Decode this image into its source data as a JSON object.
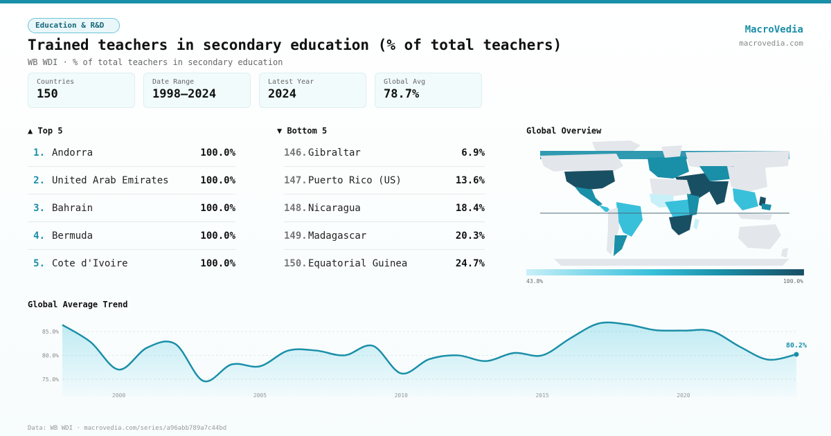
{
  "header": {
    "tag": "Education & R&D",
    "title": "Trained teachers in secondary education (% of total teachers)",
    "subtitle": "WB WDI · % of total teachers in secondary education",
    "brand": "MacroVedia",
    "brand_url": "macrovedia.com"
  },
  "stats": [
    {
      "label": "Countries",
      "value": "150"
    },
    {
      "label": "Date Range",
      "value": "1998–2024"
    },
    {
      "label": "Latest Year",
      "value": "2024"
    },
    {
      "label": "Global Avg",
      "value": "78.7%"
    }
  ],
  "top5": {
    "heading": "▲ Top 5",
    "items": [
      {
        "rank": "1.",
        "name": "Andorra",
        "value": "100.0%"
      },
      {
        "rank": "2.",
        "name": "United Arab Emirates",
        "value": "100.0%"
      },
      {
        "rank": "3.",
        "name": "Bahrain",
        "value": "100.0%"
      },
      {
        "rank": "4.",
        "name": "Bermuda",
        "value": "100.0%"
      },
      {
        "rank": "5.",
        "name": "Cote d'Ivoire",
        "value": "100.0%"
      }
    ]
  },
  "bottom5": {
    "heading": "▼ Bottom 5",
    "items": [
      {
        "rank": "146.",
        "name": "Gibraltar",
        "value": "6.9%"
      },
      {
        "rank": "147.",
        "name": "Puerto Rico (US)",
        "value": "13.6%"
      },
      {
        "rank": "148.",
        "name": "Nicaragua",
        "value": "18.4%"
      },
      {
        "rank": "149.",
        "name": "Madagascar",
        "value": "20.3%"
      },
      {
        "rank": "150.",
        "name": "Equatorial Guinea",
        "value": "24.7%"
      }
    ]
  },
  "map": {
    "heading": "Global Overview",
    "scale_min": "43.8%",
    "scale_max": "100.0%",
    "colors": {
      "light": "#c8f0f8",
      "mid": "#38c0db",
      "dark": "#1a8fa8",
      "darkest": "#194f63",
      "nodata": "#e3e6ea"
    }
  },
  "trend": {
    "heading": "Global Average Trend",
    "last_label": "80.2%",
    "line_color": "#1a8fa8"
  },
  "chart_data": {
    "type": "area",
    "title": "Global Average Trend",
    "x": [
      1998,
      1999,
      2000,
      2001,
      2002,
      2003,
      2004,
      2005,
      2006,
      2007,
      2008,
      2009,
      2010,
      2011,
      2012,
      2013,
      2014,
      2015,
      2016,
      2017,
      2018,
      2019,
      2020,
      2021,
      2022,
      2023,
      2024
    ],
    "values": [
      86.4,
      82.8,
      77.0,
      81.6,
      82.4,
      74.6,
      78.1,
      77.7,
      81.0,
      81.0,
      80.0,
      82.0,
      76.2,
      79.2,
      80.0,
      78.8,
      80.5,
      80.0,
      83.6,
      86.7,
      86.5,
      85.3,
      85.2,
      85.1,
      81.8,
      79.1,
      80.2
    ],
    "yticks": [
      75,
      80,
      85
    ],
    "ytick_labels": [
      "75.0%",
      "80.0%",
      "85.0%"
    ],
    "xticks": [
      2000,
      2005,
      2010,
      2015,
      2020
    ],
    "ylim": [
      72.5,
      88.5
    ],
    "xlim": [
      1998,
      2024
    ],
    "grid": true
  },
  "footer": {
    "text": "Data: WB WDI · macrovedia.com/series/a96abb789a7c44bd"
  }
}
